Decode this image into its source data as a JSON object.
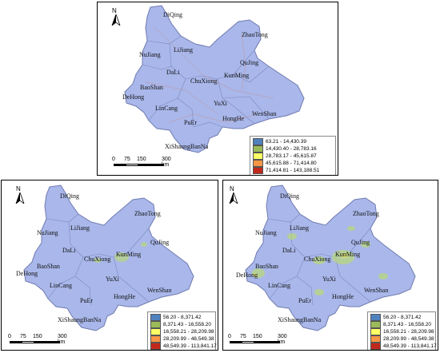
{
  "north_label": "N",
  "scale": {
    "ticks": [
      "0",
      "75",
      "150",
      "300 km"
    ]
  },
  "cities": [
    "DiQing",
    "ZhaoTong",
    "NuJiang",
    "LiJiang",
    "QuJing",
    "DaLi",
    "KunMing",
    "ChuXiong",
    "BaoShan",
    "DeHong",
    "YuXi",
    "LinCang",
    "WenShan",
    "HongHe",
    "PuEr",
    "XiShaungBanNa"
  ],
  "panels": [
    {
      "legend": [
        {
          "label": "63.21 - 14,430.39",
          "color": "#4f81bd"
        },
        {
          "label": "14,430.40 - 28,783.16",
          "color": "#9bbb59"
        },
        {
          "label": "28,783.17 - 45,615.87",
          "color": "#ffff66"
        },
        {
          "label": "45,615.88 - 71,414.80",
          "color": "#f79646"
        },
        {
          "label": "71,414.81 - 143,188.51",
          "color": "#c0281c"
        }
      ]
    },
    {
      "legend": [
        {
          "label": "56.20 - 8,371.42",
          "color": "#4f81bd"
        },
        {
          "label": "8,371.43 - 16,558.20",
          "color": "#9bbb59"
        },
        {
          "label": "16,558.21 - 28,209.98",
          "color": "#ffff66"
        },
        {
          "label": "28,209.99 - 48,549.38",
          "color": "#f79646"
        },
        {
          "label": "48,549.39 - 113,841.17",
          "color": "#c0281c"
        }
      ]
    },
    {
      "legend": [
        {
          "label": "56.20 - 8,371.42",
          "color": "#4f81bd"
        },
        {
          "label": "8,371.43 - 16,558.20",
          "color": "#9bbb59"
        },
        {
          "label": "16,558.21 - 28,209.98",
          "color": "#ffff66"
        },
        {
          "label": "28,209.99 - 48,549.38",
          "color": "#f79646"
        },
        {
          "label": "48,549.39 - 113,841.17",
          "color": "#c0281c"
        }
      ]
    }
  ],
  "colors": {
    "province_fill": "#a9b7ea",
    "boundary": "#6f7bb0",
    "roads": "#c98b8b",
    "greens": "#b9d77f"
  }
}
